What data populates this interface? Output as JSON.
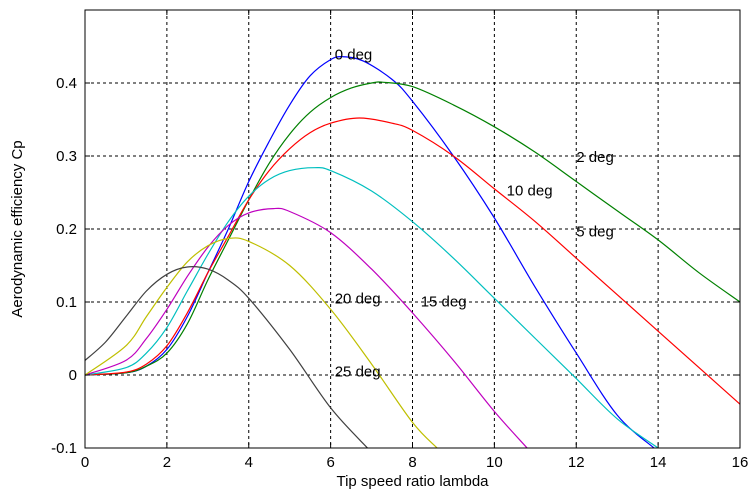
{
  "chart_data": {
    "type": "line",
    "xlabel": "Tip speed ratio lambda",
    "ylabel": "Aerodynamic efficiency Cp",
    "xlim": [
      0,
      16
    ],
    "ylim": [
      -0.1,
      0.4
    ],
    "xticks": [
      "0",
      "2",
      "4",
      "6",
      "8",
      "10",
      "12",
      "14",
      "16"
    ],
    "yticks": [
      "-0.1",
      "0",
      "0.1",
      "0.2",
      "0.3",
      "0.4"
    ],
    "grid": true,
    "series": [
      {
        "name": "0 deg",
        "color": "#0000ff",
        "x": [
          0,
          1,
          1.5,
          2,
          2.5,
          3,
          3.5,
          4,
          4.5,
          5,
          5.5,
          6,
          6.3,
          6.8,
          7.5,
          8,
          9,
          10,
          11,
          12,
          13,
          13.9
        ],
        "y": [
          0,
          0.003,
          0.012,
          0.035,
          0.08,
          0.14,
          0.2,
          0.265,
          0.32,
          0.37,
          0.41,
          0.432,
          0.436,
          0.43,
          0.405,
          0.375,
          0.3,
          0.215,
          0.12,
          0.03,
          -0.055,
          -0.1
        ]
      },
      {
        "name": "2 deg",
        "color": "#008000",
        "x": [
          0,
          1,
          1.5,
          2,
          2.5,
          3,
          3.5,
          4,
          4.5,
          5,
          5.5,
          6,
          6.5,
          7,
          7.3,
          8,
          9,
          10,
          11,
          12,
          13,
          14,
          15,
          16
        ],
        "y": [
          0,
          0.003,
          0.012,
          0.03,
          0.07,
          0.13,
          0.185,
          0.24,
          0.29,
          0.33,
          0.36,
          0.38,
          0.393,
          0.4,
          0.401,
          0.395,
          0.37,
          0.34,
          0.305,
          0.265,
          0.225,
          0.185,
          0.14,
          0.1
        ]
      },
      {
        "name": "5 deg",
        "color": "#ff0000",
        "x": [
          0,
          1,
          1.5,
          2,
          2.5,
          3,
          3.5,
          4,
          4.5,
          5,
          5.5,
          6,
          6.7,
          7.5,
          8,
          9,
          10,
          11,
          12,
          13,
          14,
          15,
          16
        ],
        "y": [
          0,
          0.004,
          0.015,
          0.04,
          0.085,
          0.14,
          0.19,
          0.24,
          0.28,
          0.31,
          0.332,
          0.345,
          0.352,
          0.345,
          0.335,
          0.3,
          0.255,
          0.21,
          0.16,
          0.11,
          0.06,
          0.01,
          -0.04
        ]
      },
      {
        "name": "10 deg",
        "color": "#00bfbf",
        "x": [
          0,
          1,
          1.5,
          2,
          2.5,
          3,
          3.5,
          4,
          4.5,
          5,
          5.6,
          6,
          7,
          8,
          9,
          10,
          11,
          12,
          13,
          14
        ],
        "y": [
          0,
          0.01,
          0.03,
          0.065,
          0.115,
          0.165,
          0.21,
          0.245,
          0.268,
          0.28,
          0.284,
          0.28,
          0.252,
          0.21,
          0.16,
          0.105,
          0.05,
          -0.005,
          -0.06,
          -0.1
        ]
      },
      {
        "name": "15 deg",
        "color": "#bf00bf",
        "x": [
          0,
          1,
          1.5,
          2,
          2.5,
          3,
          3.5,
          4,
          4.6,
          5,
          6,
          7,
          8,
          9,
          10,
          10.8
        ],
        "y": [
          0,
          0.02,
          0.05,
          0.09,
          0.135,
          0.175,
          0.205,
          0.222,
          0.228,
          0.224,
          0.195,
          0.145,
          0.085,
          0.02,
          -0.05,
          -0.1
        ]
      },
      {
        "name": "20 deg",
        "color": "#bfbf00",
        "x": [
          0,
          1,
          1.5,
          2,
          2.5,
          3,
          3.5,
          4,
          5,
          6,
          7,
          8,
          8.6
        ],
        "y": [
          0,
          0.04,
          0.08,
          0.12,
          0.155,
          0.177,
          0.187,
          0.183,
          0.15,
          0.09,
          0.015,
          -0.065,
          -0.1
        ]
      },
      {
        "name": "25 deg",
        "color": "#404040",
        "x": [
          0,
          0.5,
          1,
          1.5,
          2,
          2.5,
          3,
          3.5,
          4,
          5,
          6,
          6.9
        ],
        "y": [
          0.02,
          0.045,
          0.08,
          0.115,
          0.138,
          0.148,
          0.145,
          0.13,
          0.105,
          0.035,
          -0.045,
          -0.1
        ]
      }
    ],
    "annotations": [
      {
        "text": "0 deg",
        "x": 6.1,
        "y": 0.432
      },
      {
        "text": "2 deg",
        "x": 12,
        "y": 0.292
      },
      {
        "text": "10 deg",
        "x": 10.3,
        "y": 0.246
      },
      {
        "text": "5 deg",
        "x": 12,
        "y": 0.19
      },
      {
        "text": "20 deg",
        "x": 6.1,
        "y": 0.098
      },
      {
        "text": "15 deg",
        "x": 8.2,
        "y": 0.094
      },
      {
        "text": "25 deg",
        "x": 6.1,
        "y": -0.002
      }
    ]
  }
}
